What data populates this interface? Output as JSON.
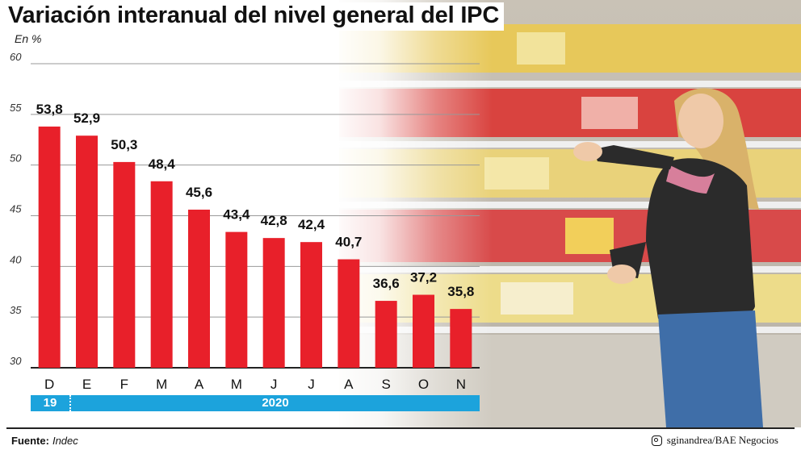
{
  "title": "Variación interanual del nivel general del IPC",
  "unit": "En %",
  "chart_data": {
    "type": "bar",
    "title": "Variación interanual del nivel general del IPC",
    "ylabel": "En %",
    "ylim": [
      30,
      60
    ],
    "yticks": [
      30,
      35,
      40,
      45,
      50,
      55,
      60
    ],
    "categories": [
      "D",
      "E",
      "F",
      "M",
      "A",
      "M",
      "J",
      "J",
      "A",
      "S",
      "O",
      "N"
    ],
    "values": [
      53.8,
      52.9,
      50.3,
      48.4,
      45.6,
      43.4,
      42.8,
      42.4,
      40.7,
      36.6,
      37.2,
      35.8
    ],
    "value_labels": [
      "53,8",
      "52,9",
      "50,3",
      "48,4",
      "45,6",
      "43,4",
      "42,8",
      "42,4",
      "40,7",
      "36,6",
      "37,2",
      "35,8"
    ],
    "grid": true,
    "bar_color": "#e8202a"
  },
  "years": {
    "first": "19",
    "second": "2020"
  },
  "colors": {
    "bar": "#e8202a",
    "year_band": "#1ca3dc",
    "grid": "#999999"
  },
  "footer": {
    "source_label": "Fuente:",
    "source_value": "Indec",
    "credit_icon": "instagram-icon",
    "credit": "sginandrea/BAE Negocios"
  }
}
